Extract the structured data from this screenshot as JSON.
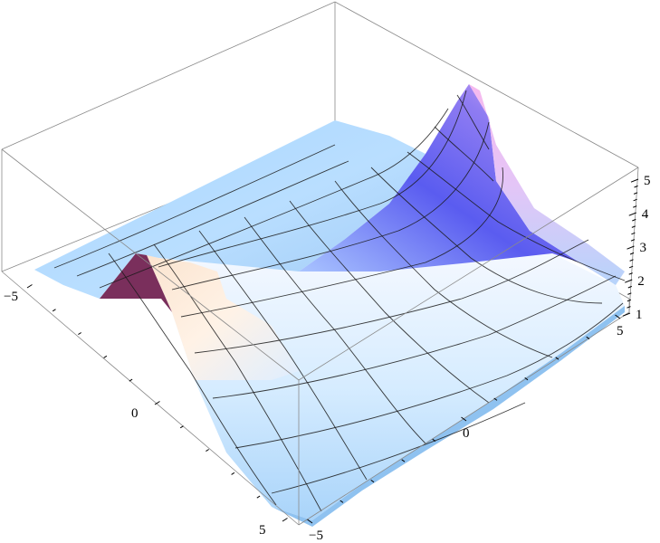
{
  "chart_data": {
    "type": "surface3d",
    "title": "",
    "x_range": [
      -5,
      5
    ],
    "y_range": [
      -5,
      5
    ],
    "z_range": [
      1,
      5
    ],
    "ticks": {
      "x": [
        {
          "value": -5,
          "label": "−5"
        },
        {
          "value": 0,
          "label": "0"
        },
        {
          "value": 5,
          "label": "5"
        }
      ],
      "y": [
        {
          "value": -5,
          "label": "−5"
        },
        {
          "value": 0,
          "label": "0"
        },
        {
          "value": 5,
          "label": "5"
        }
      ],
      "z": [
        {
          "value": 1,
          "label": "1"
        },
        {
          "value": 2,
          "label": "2"
        },
        {
          "value": 3,
          "label": "3"
        },
        {
          "value": 4,
          "label": "4"
        },
        {
          "value": 5,
          "label": "5"
        }
      ]
    },
    "surface_samples": {
      "grid_x": [
        -5,
        -2.5,
        0,
        2.5,
        5
      ],
      "grid_y": [
        -5,
        -2.5,
        0,
        2.5,
        5
      ],
      "note_free": true,
      "z": [
        [
          1.6,
          3.6,
          1.7,
          1.2,
          1.1
        ],
        [
          1.2,
          2.4,
          1.6,
          1.2,
          1.1
        ],
        [
          1.2,
          1.4,
          1.5,
          2.0,
          1.3
        ],
        [
          1.2,
          1.3,
          1.7,
          3.2,
          2.1
        ],
        [
          1.3,
          1.5,
          2.4,
          5.0,
          2.4
        ]
      ]
    },
    "mesh": "on",
    "colors": {
      "low": "#9fd0ff",
      "mid": "#7b86f5",
      "high": "#f4b6ee",
      "dark_ridge": "#7a2f5c",
      "box": "#8a8a8a"
    }
  }
}
